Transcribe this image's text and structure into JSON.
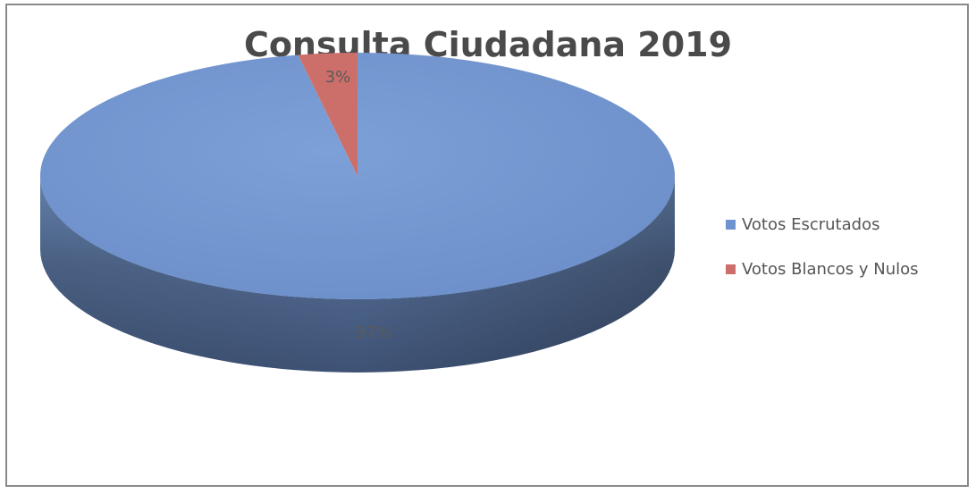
{
  "chart_data": {
    "type": "pie",
    "title": "Consulta Ciudadana 2019",
    "categories": [
      "Votos Escrutados",
      "Votos Blancos y Nulos"
    ],
    "values": [
      97,
      3
    ],
    "value_labels": [
      "97%",
      "3%"
    ],
    "colors": [
      "#6f93cf",
      "#cc6f6b"
    ],
    "legend_position": "right",
    "style": "3d"
  }
}
